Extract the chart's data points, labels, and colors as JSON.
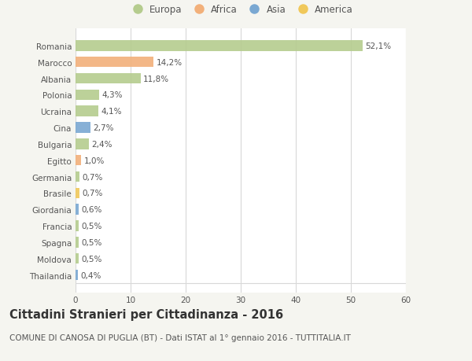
{
  "countries": [
    "Romania",
    "Marocco",
    "Albania",
    "Polonia",
    "Ucraina",
    "Cina",
    "Bulgaria",
    "Egitto",
    "Germania",
    "Brasile",
    "Giordania",
    "Francia",
    "Spagna",
    "Moldova",
    "Thailandia"
  ],
  "values": [
    52.1,
    14.2,
    11.8,
    4.3,
    4.1,
    2.7,
    2.4,
    1.0,
    0.7,
    0.7,
    0.6,
    0.5,
    0.5,
    0.5,
    0.4
  ],
  "labels": [
    "52,1%",
    "14,2%",
    "11,8%",
    "4,3%",
    "4,1%",
    "2,7%",
    "2,4%",
    "1,0%",
    "0,7%",
    "0,7%",
    "0,6%",
    "0,5%",
    "0,5%",
    "0,5%",
    "0,4%"
  ],
  "colors": [
    "#b5cc8e",
    "#f2b07a",
    "#b5cc8e",
    "#b5cc8e",
    "#b5cc8e",
    "#7aa8d2",
    "#b5cc8e",
    "#f2b07a",
    "#b5cc8e",
    "#f0c85a",
    "#7aa8d2",
    "#b5cc8e",
    "#b5cc8e",
    "#b5cc8e",
    "#7aa8d2"
  ],
  "continent_colors": {
    "Europa": "#b5cc8e",
    "Africa": "#f2b07a",
    "Asia": "#7aa8d2",
    "America": "#f0c85a"
  },
  "xlim": [
    0,
    60
  ],
  "xticks": [
    0,
    10,
    20,
    30,
    40,
    50,
    60
  ],
  "title": "Cittadini Stranieri per Cittadinanza - 2016",
  "subtitle": "COMUNE DI CANOSA DI PUGLIA (BT) - Dati ISTAT al 1° gennaio 2016 - TUTTITALIA.IT",
  "bg_color": "#f5f5f0",
  "bar_bg_color": "#ffffff",
  "grid_color": "#d8d8d8",
  "text_color": "#555555",
  "title_fontsize": 10.5,
  "subtitle_fontsize": 7.5,
  "tick_fontsize": 7.5,
  "label_fontsize": 7.5
}
